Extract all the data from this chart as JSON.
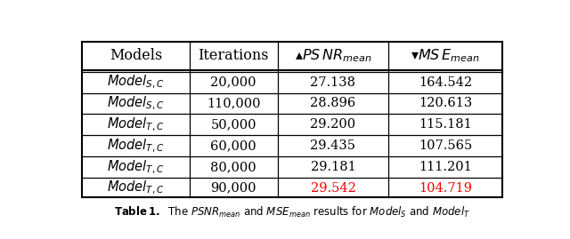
{
  "col_headers_text": [
    "Models",
    "Iterations",
    "▲PSNR",
    "▼MSE"
  ],
  "col_headers_sub": [
    "",
    "",
    "mean",
    "mean"
  ],
  "rows": [
    [
      "S",
      "20,000",
      "27.138",
      "164.542",
      false
    ],
    [
      "S",
      "110,000",
      "28.896",
      "120.613",
      false
    ],
    [
      "T",
      "50,000",
      "29.200",
      "115.181",
      false
    ],
    [
      "T",
      "60,000",
      "29.435",
      "107.565",
      false
    ],
    [
      "T",
      "80,000",
      "29.181",
      "111.201",
      false
    ],
    [
      "T",
      "90,000",
      "29.542",
      "104.719",
      true
    ]
  ],
  "highlight_color": "#ff0000",
  "normal_color": "#000000",
  "bg_color": "#ffffff",
  "border_color": "#000000",
  "caption_line1": "able 1. The ",
  "figwidth": 6.4,
  "figheight": 2.69,
  "dpi": 100
}
